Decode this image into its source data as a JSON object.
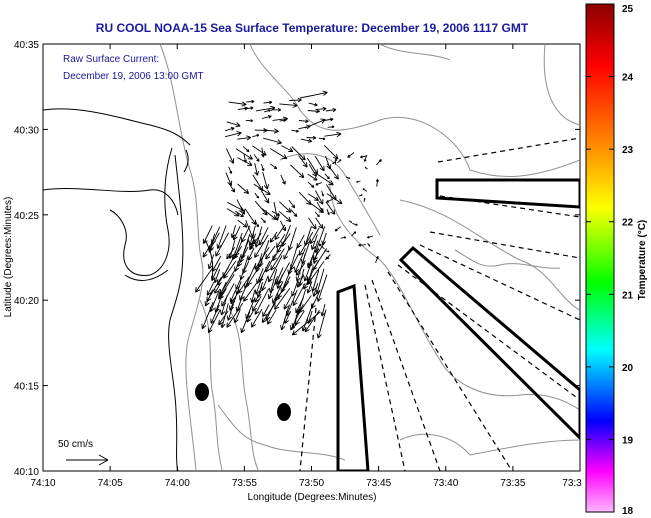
{
  "title": "RU COOL  NOAA-15  Sea Surface Temperature:  December 19, 2006 1117 GMT",
  "annotation": {
    "line1": "Raw Surface Current:",
    "line2": "December 19, 2006 13:00 GMT"
  },
  "scale_label": "50 cm/s",
  "x_axis": {
    "label": "Longitude (Degrees:Minutes)",
    "ticks": [
      "74:10",
      "74:05",
      "74:00",
      "73:55",
      "73:50",
      "73:45",
      "73:40",
      "73:35",
      "73:3"
    ]
  },
  "y_axis": {
    "label": "Latitude (Degrees:Minutes)",
    "ticks": [
      "40:35",
      "40:30",
      "40:25",
      "40:20",
      "40:15",
      "40:10"
    ]
  },
  "colorbar": {
    "label": "Temperature (°C)",
    "ticks": [
      "25",
      "24",
      "23",
      "22",
      "21",
      "20",
      "19",
      "18"
    ],
    "colors": [
      "#8b0000",
      "#ff0000",
      "#ff8c00",
      "#ffff00",
      "#00ff00",
      "#00ffff",
      "#0000ff",
      "#ff00ff",
      "#ffb6ff"
    ]
  },
  "map_features": {
    "coastline_color": "#000000",
    "bathymetry_color": "#909090",
    "sector_color": "#000000",
    "current_vector_color": "#000000"
  }
}
